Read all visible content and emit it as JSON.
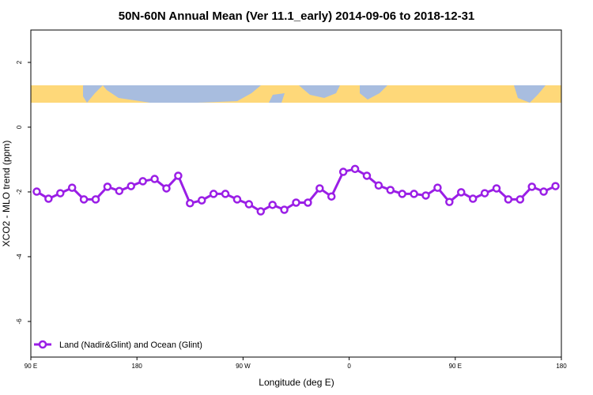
{
  "chart_data": {
    "type": "line",
    "title": "50N-60N Annual Mean (Ver 11.1_early)   2014-09-06 to 2018-12-31",
    "x_label": "Longitude (deg E)",
    "y_label": "XCO2 - MLO trend (ppm)",
    "xlim": [
      90,
      540
    ],
    "ylim": [
      -7.1,
      3
    ],
    "xticks": [
      {
        "value": 90,
        "label": "90 E"
      },
      180,
      {
        "value": 270,
        "label": "90 W"
      },
      {
        "value": 360,
        "label": "0"
      },
      {
        "value": 450,
        "label": "90 E"
      },
      {
        "value": 540,
        "label": "180"
      }
    ],
    "yticks": [
      -6,
      -4,
      -2,
      0,
      2
    ],
    "legend_position": "bottom-left",
    "series": [
      {
        "name": "Land (Nadir&Glint) and Ocean (Glint)",
        "color": "#9a1ee6",
        "x": [
          95,
          105,
          115,
          125,
          135,
          145,
          155,
          165,
          175,
          185,
          195,
          205,
          215,
          225,
          235,
          245,
          255,
          265,
          275,
          285,
          295,
          305,
          315,
          325,
          335,
          345,
          355,
          365,
          375,
          385,
          395,
          405,
          415,
          425,
          435,
          445,
          455,
          465,
          475,
          485,
          495,
          505,
          515,
          525,
          535
        ],
        "values": [
          -1.99,
          -2.21,
          -2.04,
          -1.87,
          -2.23,
          -2.23,
          -1.84,
          -1.97,
          -1.82,
          -1.67,
          -1.6,
          -1.89,
          -1.5,
          -2.35,
          -2.26,
          -2.06,
          -2.06,
          -2.23,
          -2.38,
          -2.6,
          -2.4,
          -2.55,
          -2.33,
          -2.33,
          -1.89,
          -2.14,
          -1.38,
          -1.29,
          -1.5,
          -1.8,
          -1.94,
          -2.06,
          -2.06,
          -2.11,
          -1.87,
          -2.31,
          -2.01,
          -2.21,
          -2.04,
          -1.89,
          -2.23,
          -2.23,
          -1.84,
          -1.99,
          -1.82
        ]
      }
    ]
  }
}
